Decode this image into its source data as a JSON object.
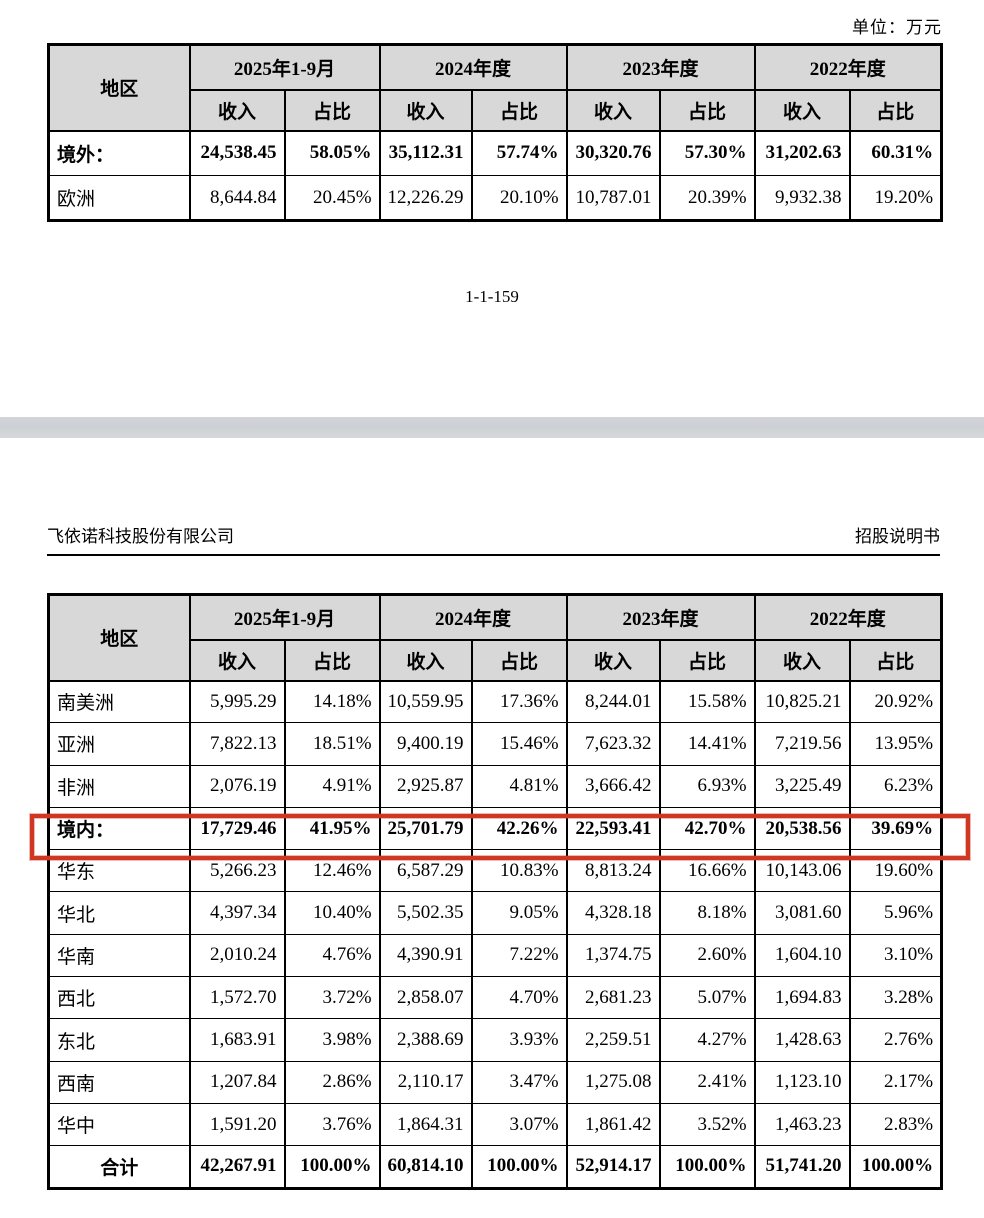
{
  "unit_label": "单位：万元",
  "page_number": "1-1-159",
  "running_header": {
    "company": "飞依诺科技股份有限公司",
    "doc_label": "招股说明书"
  },
  "highlight_color": "#cf3722",
  "header_bg_color": "#d8d8d8",
  "tables": {
    "headers": {
      "region": "地区",
      "periods": [
        "2025年1-9月",
        "2024年度",
        "2023年度",
        "2022年度"
      ],
      "sub": [
        "收入",
        "占比"
      ]
    },
    "top": {
      "rows": [
        {
          "region": "境外：",
          "variant": "bold",
          "values": [
            "24,538.45",
            "58.05%",
            "35,112.31",
            "57.74%",
            "30,320.76",
            "57.30%",
            "31,202.63",
            "60.31%"
          ]
        },
        {
          "region": "欧洲",
          "variant": "normal",
          "values": [
            "8,644.84",
            "20.45%",
            "12,226.29",
            "20.10%",
            "10,787.01",
            "20.39%",
            "9,932.38",
            "19.20%"
          ]
        }
      ]
    },
    "bottom": {
      "rows": [
        {
          "region": "南美洲",
          "variant": "normal",
          "values": [
            "5,995.29",
            "14.18%",
            "10,559.95",
            "17.36%",
            "8,244.01",
            "15.58%",
            "10,825.21",
            "20.92%"
          ]
        },
        {
          "region": "亚洲",
          "variant": "normal",
          "values": [
            "7,822.13",
            "18.51%",
            "9,400.19",
            "15.46%",
            "7,623.32",
            "14.41%",
            "7,219.56",
            "13.95%"
          ]
        },
        {
          "region": "非洲",
          "variant": "normal",
          "values": [
            "2,076.19",
            "4.91%",
            "2,925.87",
            "4.81%",
            "3,666.42",
            "6.93%",
            "3,225.49",
            "6.23%"
          ]
        },
        {
          "region": "境内：",
          "variant": "bold",
          "highlighted": true,
          "values": [
            "17,729.46",
            "41.95%",
            "25,701.79",
            "42.26%",
            "22,593.41",
            "42.70%",
            "20,538.56",
            "39.69%"
          ]
        },
        {
          "region": "华东",
          "variant": "normal",
          "values": [
            "5,266.23",
            "12.46%",
            "6,587.29",
            "10.83%",
            "8,813.24",
            "16.66%",
            "10,143.06",
            "19.60%"
          ]
        },
        {
          "region": "华北",
          "variant": "normal",
          "values": [
            "4,397.34",
            "10.40%",
            "5,502.35",
            "9.05%",
            "4,328.18",
            "8.18%",
            "3,081.60",
            "5.96%"
          ]
        },
        {
          "region": "华南",
          "variant": "normal",
          "values": [
            "2,010.24",
            "4.76%",
            "4,390.91",
            "7.22%",
            "1,374.75",
            "2.60%",
            "1,604.10",
            "3.10%"
          ]
        },
        {
          "region": "西北",
          "variant": "normal",
          "values": [
            "1,572.70",
            "3.72%",
            "2,858.07",
            "4.70%",
            "2,681.23",
            "5.07%",
            "1,694.83",
            "3.28%"
          ]
        },
        {
          "region": "东北",
          "variant": "normal",
          "values": [
            "1,683.91",
            "3.98%",
            "2,388.69",
            "3.93%",
            "2,259.51",
            "4.27%",
            "1,428.63",
            "2.76%"
          ]
        },
        {
          "region": "西南",
          "variant": "normal",
          "values": [
            "1,207.84",
            "2.86%",
            "2,110.17",
            "3.47%",
            "1,275.08",
            "2.41%",
            "1,123.10",
            "2.17%"
          ]
        },
        {
          "region": "华中",
          "variant": "normal",
          "values": [
            "1,591.20",
            "3.76%",
            "1,864.31",
            "3.07%",
            "1,861.42",
            "3.52%",
            "1,463.23",
            "2.83%"
          ]
        },
        {
          "region": "合计",
          "variant": "total",
          "values": [
            "42,267.91",
            "100.00%",
            "60,814.10",
            "100.00%",
            "52,914.17",
            "100.00%",
            "51,741.20",
            "100.00%"
          ]
        }
      ]
    }
  }
}
